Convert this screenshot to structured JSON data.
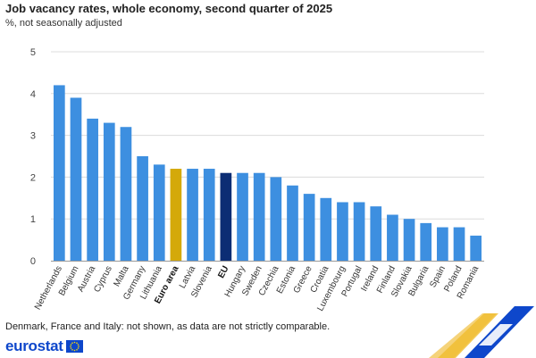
{
  "header": {
    "title": "Job vacancy rates, whole economy, second quarter of 2025",
    "subtitle": "%, not seasonally adjusted"
  },
  "footer": {
    "note": "Denmark, France and Italy: not shown, as data are not strictly comparable.",
    "logo_text": "eurostat"
  },
  "colors": {
    "country": "#3d8fe0",
    "euro_area": "#d4a90a",
    "eu": "#0c2d74",
    "grid": "#dcdcdc"
  },
  "chart_data": {
    "type": "bar",
    "title": "Job vacancy rates, whole economy, second quarter of 2025",
    "subtitle": "%, not seasonally adjusted",
    "ylim": [
      0,
      5
    ],
    "yticks": [
      0,
      1,
      2,
      3,
      4,
      5
    ],
    "grid": true,
    "categories": [
      "Netherlands",
      "Belgium",
      "Austria",
      "Cyprus",
      "Malta",
      "Germany",
      "Lithuania",
      "Euro area",
      "Latvia",
      "Slovenia",
      "EU",
      "Hungary",
      "Sweden",
      "Czechia",
      "Estonia",
      "Greece",
      "Croatia",
      "Luxembourg",
      "Portugal",
      "Ireland",
      "Finland",
      "Slovakia",
      "Bulgaria",
      "Spain",
      "Poland",
      "Romania"
    ],
    "values": [
      4.2,
      3.9,
      3.4,
      3.3,
      3.2,
      2.5,
      2.3,
      2.2,
      2.2,
      2.2,
      2.1,
      2.1,
      2.1,
      2.0,
      1.8,
      1.6,
      1.5,
      1.4,
      1.4,
      1.3,
      1.1,
      1.0,
      0.9,
      0.8,
      0.8,
      0.6
    ],
    "highlight": {
      "Euro area": "euro_area",
      "EU": "eu"
    }
  }
}
